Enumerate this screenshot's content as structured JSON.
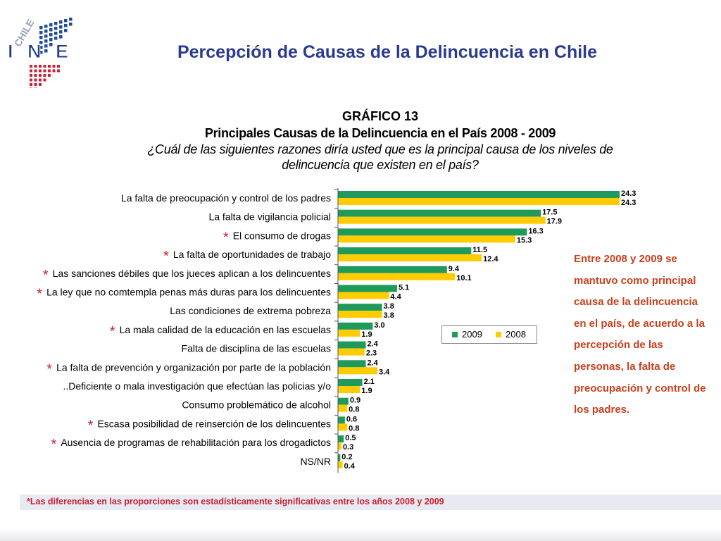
{
  "logo": {
    "text_top": "CHILE",
    "text_main": "INE"
  },
  "header": {
    "title": "Percepción de Causas de la Delincuencia en Chile"
  },
  "chart_data": {
    "type": "bar",
    "orientation": "horizontal",
    "title": "GRÁFICO 13",
    "subtitle": "Principales Causas de la Delincuencia en el País 2008 - 2009",
    "question": "¿Cuál de las siguientes razones diría usted que es la principal causa de los niveles de delincuencia que existen en el país?",
    "categories": [
      "La falta de preocupación y control de los padres",
      "La falta de vigilancia policial",
      "El consumo de drogas",
      "La falta de oportunidades de trabajo",
      "Las sanciones débiles que los jueces aplican a los delincuentes",
      "La ley que no comtempla penas más duras para los delincuentes",
      "Las condiciones de extrema pobreza",
      "La mala calidad de la educación en las escuelas",
      "Falta de disciplina de las escuelas",
      "La falta de prevención y organización por parte de la población",
      "..Deficiente o mala investigación que efectúan las policias y/o",
      "Consumo problemático de alcohol",
      "Escasa posibilidad de reinserción de los delincuentes",
      "Ausencia de programas de rehabilitación para los drogadictos",
      "NS/NR"
    ],
    "significant": [
      false,
      false,
      true,
      true,
      true,
      true,
      false,
      true,
      false,
      true,
      false,
      false,
      true,
      true,
      false
    ],
    "series": [
      {
        "name": "2009",
        "color": "#1f9a5a",
        "values": [
          24.3,
          17.5,
          16.3,
          11.5,
          9.4,
          5.1,
          3.8,
          3.0,
          2.4,
          2.4,
          2.1,
          0.9,
          0.6,
          0.5,
          0.2
        ]
      },
      {
        "name": "2008",
        "color": "#ffcc00",
        "values": [
          24.3,
          17.9,
          15.3,
          12.4,
          10.1,
          4.4,
          3.8,
          1.9,
          2.3,
          3.4,
          1.9,
          0.8,
          0.8,
          0.3,
          0.4
        ]
      }
    ],
    "value_labels": {
      "2009": [
        "24.3",
        "17.5",
        "16.3",
        "11.5",
        "9.4",
        "5.1",
        "3.8",
        "3.0",
        "2.4",
        "2.4",
        "2.1",
        "0.9",
        "0.6",
        "0.5",
        "0.2"
      ],
      "2008": [
        "24.3",
        "17.9",
        "15.3",
        "12.4",
        "10.1",
        "4.4",
        "3.8",
        "1.9",
        "2.3",
        "3.4",
        "1.9",
        "0.8",
        "0.8",
        "0.3",
        "0.4"
      ]
    },
    "significance_marker": "*",
    "legend_position": "right-middle",
    "xlim": [
      0,
      25
    ]
  },
  "side_note": "Entre 2008 y 2009 se mantuvo como principal causa de la delincuencia en el país, de acuerdo a la percepción de las personas, la falta de preocupación y control de los padres.",
  "footnote": "*Las diferencias en las proporciones son estadísticamente significativas entre los años 2008 y 2009"
}
